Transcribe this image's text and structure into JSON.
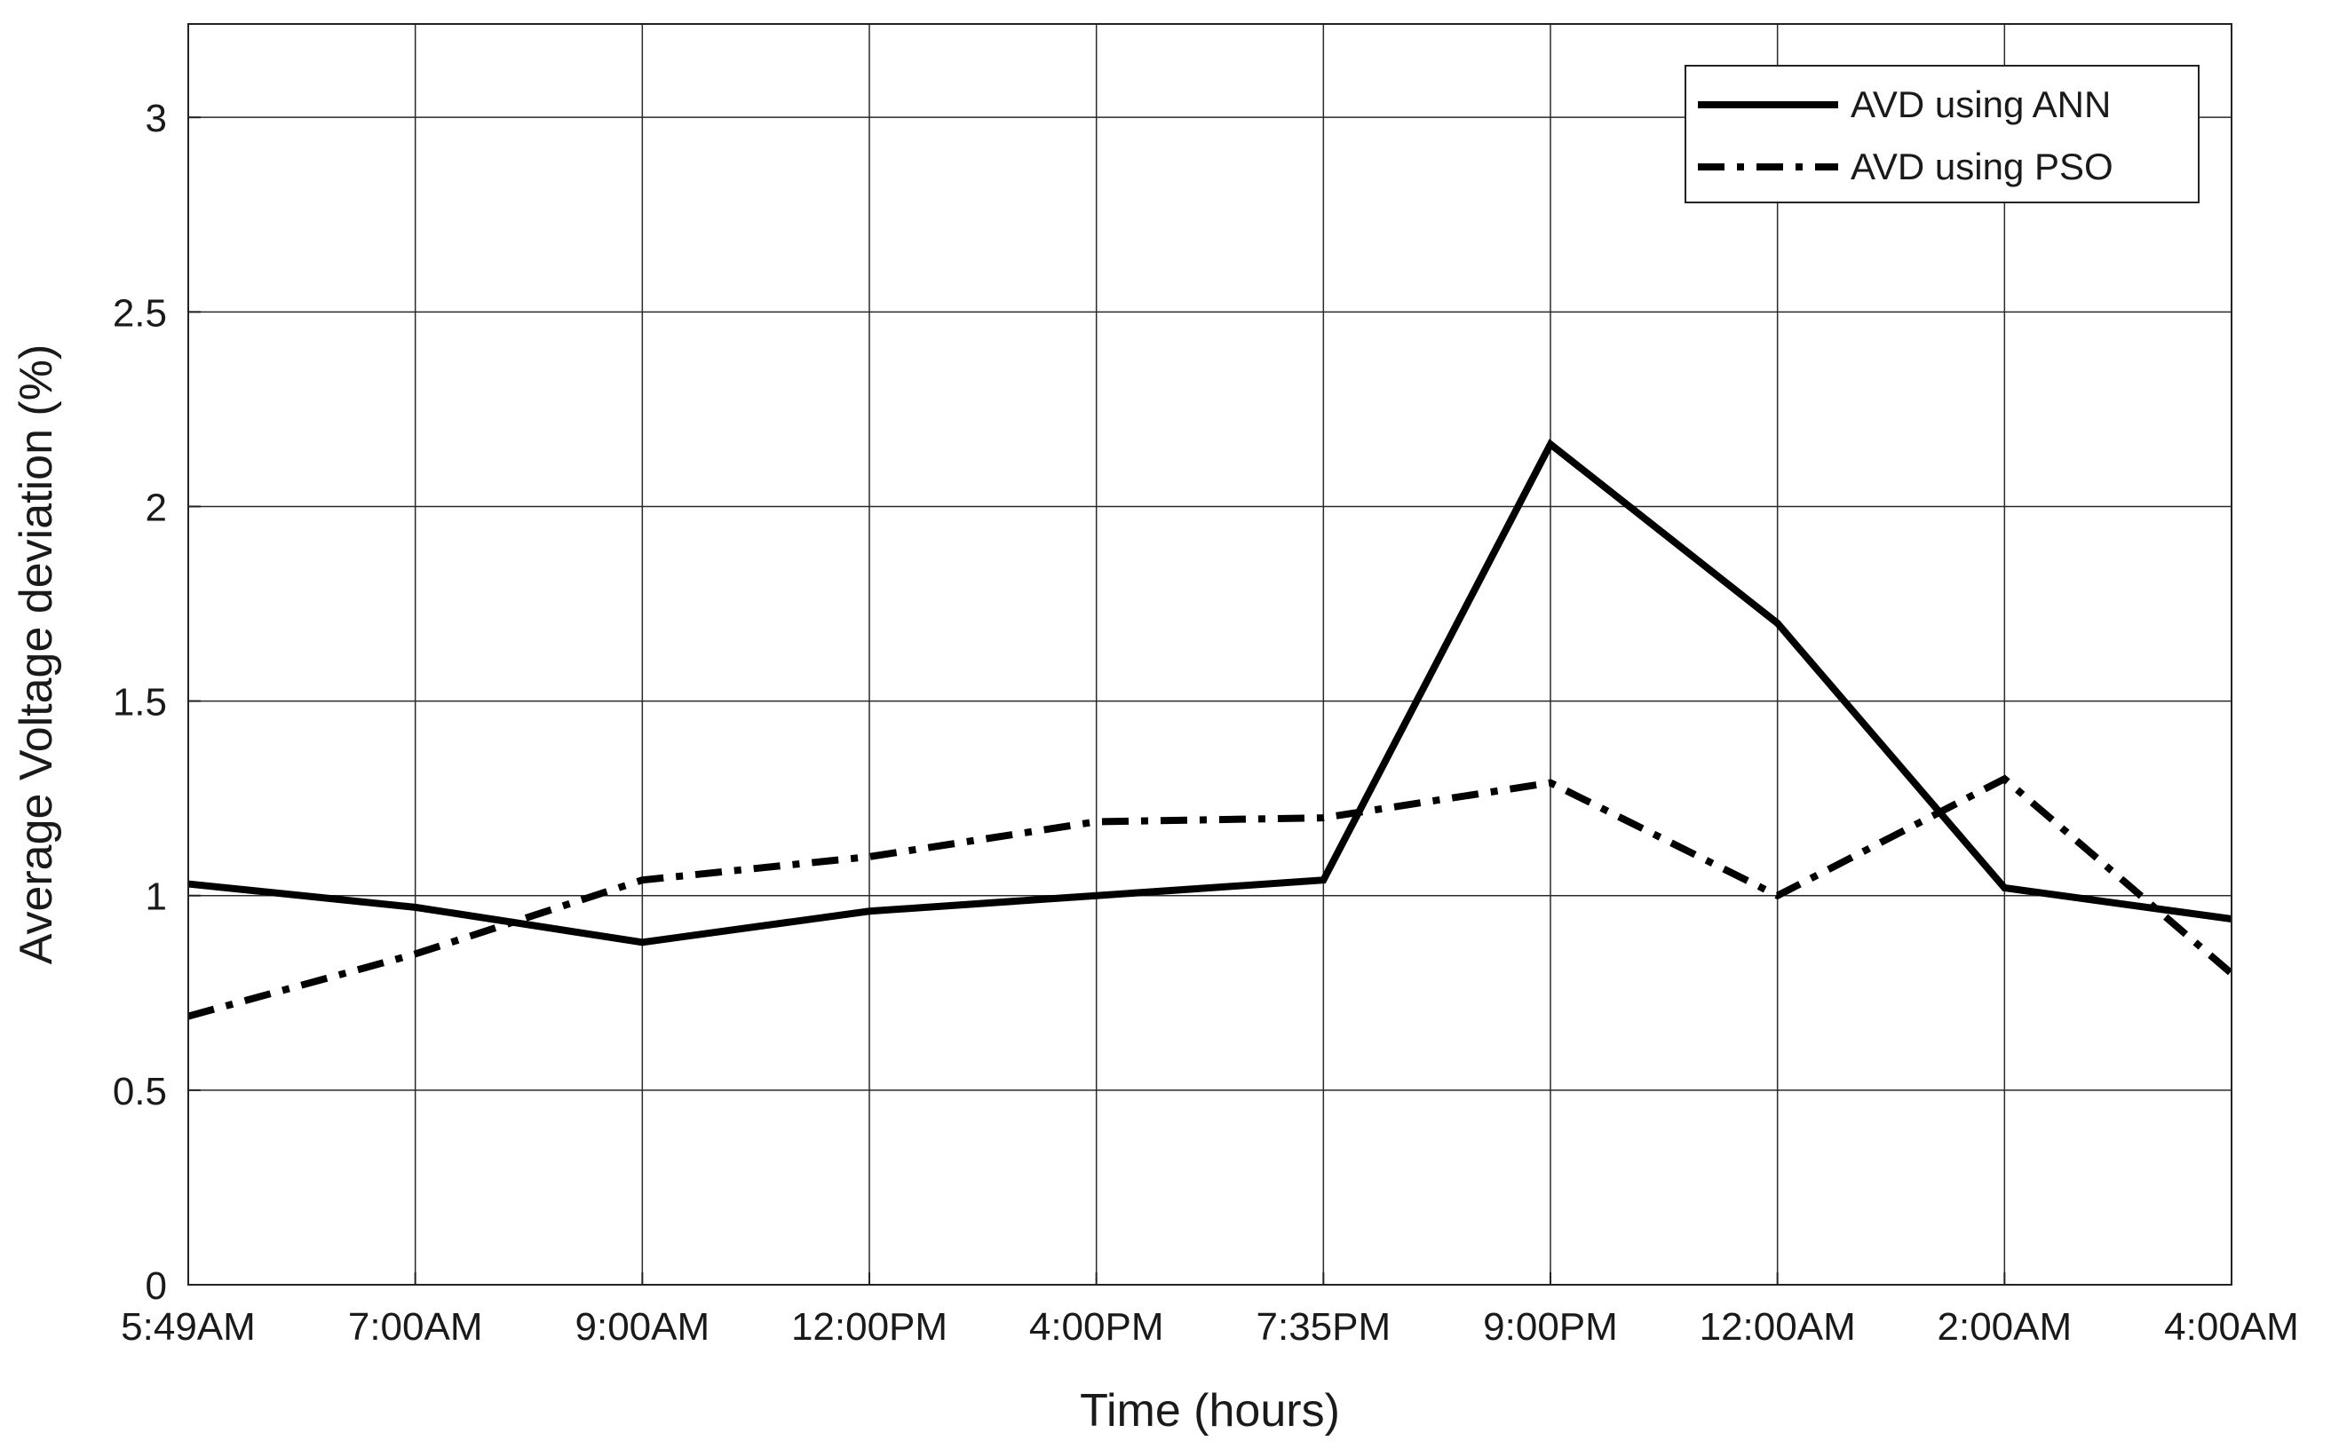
{
  "chart_data": {
    "type": "line",
    "xlabel": "Time (hours)",
    "ylabel": "Average Voltage deviation (%)",
    "categories": [
      "5:49AM",
      "7:00AM",
      "9:00AM",
      "12:00PM",
      "4:00PM",
      "7:35PM",
      "9:00PM",
      "12:00AM",
      "2:00AM",
      "4:00AM"
    ],
    "ylim": [
      0,
      3.24
    ],
    "yticks": [
      0,
      0.5,
      1,
      1.5,
      2,
      2.5,
      3
    ],
    "ytick_labels": [
      "0",
      "0.5",
      "1",
      "1.5",
      "2",
      "2.5",
      "3"
    ],
    "grid": true,
    "legend_position": "top-right",
    "series": [
      {
        "name": "AVD using ANN",
        "line_style": "solid",
        "color": "#000000",
        "values": [
          1.03,
          0.97,
          0.88,
          0.96,
          1.0,
          1.04,
          2.16,
          1.7,
          1.02,
          0.94
        ]
      },
      {
        "name": "AVD using PSO",
        "line_style": "dash-dot",
        "color": "#000000",
        "values": [
          0.69,
          0.85,
          1.04,
          1.1,
          1.19,
          1.2,
          1.29,
          1.0,
          1.3,
          0.8
        ]
      }
    ]
  }
}
